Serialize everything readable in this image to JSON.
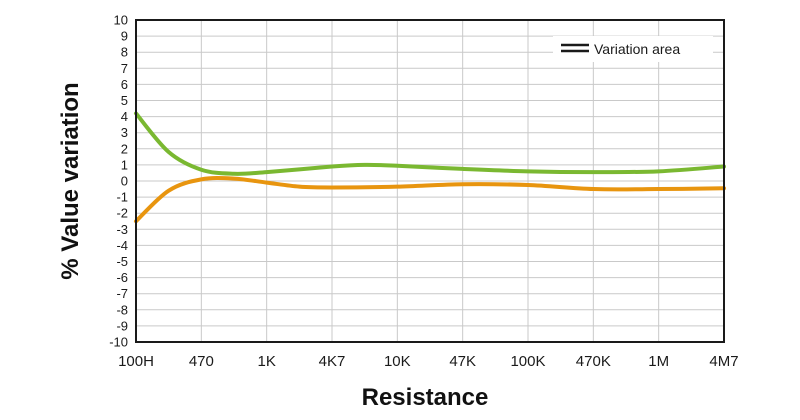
{
  "chart_data": {
    "type": "line",
    "title": "",
    "xlabel": "Resistance",
    "ylabel": "% Value variation",
    "categories": [
      "100H",
      "470",
      "1K",
      "4K7",
      "10K",
      "47K",
      "100K",
      "470K",
      "1M",
      "4M7"
    ],
    "ylim": [
      -10,
      10
    ],
    "yticks": [
      10,
      9,
      8,
      7,
      6,
      5,
      4,
      3,
      2,
      1,
      0,
      -1,
      -2,
      -3,
      -4,
      -5,
      -6,
      -7,
      -8,
      -9,
      -10
    ],
    "grid": true,
    "legend": {
      "position": "top-right",
      "label": "Variation area"
    },
    "series": [
      {
        "role": "upper-bound",
        "color": "#7ab831",
        "x": [
          0,
          0.5,
          1,
          1.5,
          2,
          3,
          3.5,
          4,
          5,
          6,
          7,
          8,
          9
        ],
        "values": [
          4.2,
          1.8,
          0.7,
          0.45,
          0.55,
          0.9,
          1.0,
          0.95,
          0.75,
          0.6,
          0.55,
          0.6,
          0.9
        ]
      },
      {
        "role": "lower-bound",
        "color": "#e8950f",
        "x": [
          0,
          0.5,
          1,
          1.5,
          2,
          2.5,
          3,
          4,
          5,
          6,
          7,
          8,
          9
        ],
        "values": [
          -2.5,
          -0.6,
          0.1,
          0.15,
          -0.1,
          -0.35,
          -0.4,
          -0.35,
          -0.2,
          -0.25,
          -0.5,
          -0.5,
          -0.45
        ]
      }
    ]
  }
}
